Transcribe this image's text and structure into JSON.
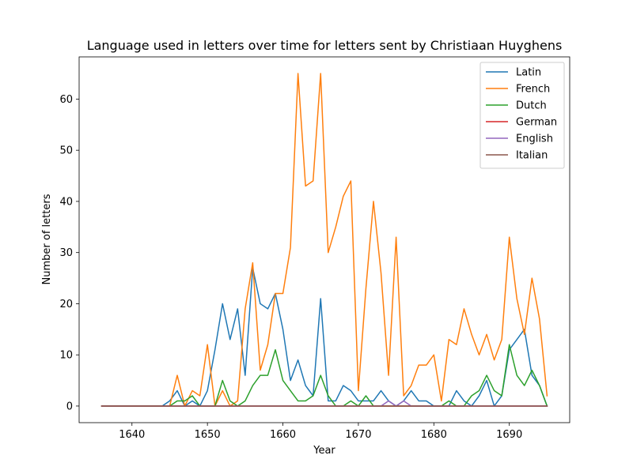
{
  "chart_data": {
    "type": "line",
    "title": "Language used in letters over time for letters sent by Christiaan Huyghens",
    "xlabel": "Year",
    "ylabel": "Number of letters",
    "xlim": [
      1633,
      1698
    ],
    "ylim": [
      -3.25,
      68.25
    ],
    "xticks": [
      1640,
      1650,
      1660,
      1670,
      1680,
      1690
    ],
    "yticks": [
      0,
      10,
      20,
      30,
      40,
      50,
      60
    ],
    "grid": false,
    "legend_position": "top-right",
    "x": [
      1636,
      1637,
      1638,
      1639,
      1640,
      1641,
      1642,
      1643,
      1644,
      1645,
      1646,
      1647,
      1648,
      1649,
      1650,
      1651,
      1652,
      1653,
      1654,
      1655,
      1656,
      1657,
      1658,
      1659,
      1660,
      1661,
      1662,
      1663,
      1664,
      1665,
      1666,
      1667,
      1668,
      1669,
      1670,
      1671,
      1672,
      1673,
      1674,
      1675,
      1676,
      1677,
      1678,
      1679,
      1680,
      1681,
      1682,
      1683,
      1684,
      1685,
      1686,
      1687,
      1688,
      1689,
      1690,
      1691,
      1692,
      1693,
      1694,
      1695
    ],
    "series": [
      {
        "name": "Latin",
        "color": "#1f77b4",
        "values": [
          0,
          0,
          0,
          0,
          0,
          0,
          0,
          0,
          0,
          1,
          3,
          0,
          1,
          0,
          3,
          11,
          20,
          13,
          19,
          6,
          27,
          20,
          19,
          22,
          15,
          5,
          9,
          4,
          2,
          21,
          1,
          1,
          4,
          3,
          1,
          1,
          1,
          3,
          1,
          0,
          1,
          3,
          1,
          1,
          0,
          0,
          0,
          3,
          1,
          0,
          2,
          5,
          0,
          2,
          11,
          13,
          15,
          6,
          4,
          0
        ]
      },
      {
        "name": "French",
        "color": "#ff7f0e",
        "values": [
          0,
          0,
          0,
          0,
          0,
          0,
          0,
          0,
          0,
          0,
          6,
          0,
          3,
          2,
          12,
          0,
          3,
          0,
          1,
          19,
          28,
          7,
          12,
          22,
          22,
          31,
          65,
          43,
          44,
          65,
          30,
          35,
          41,
          44,
          3,
          23,
          40,
          26,
          6,
          33,
          2,
          4,
          8,
          8,
          10,
          1,
          13,
          12,
          19,
          14,
          10,
          14,
          9,
          13,
          33,
          21,
          14,
          25,
          17,
          2
        ]
      },
      {
        "name": "Dutch",
        "color": "#2ca02c",
        "values": [
          0,
          0,
          0,
          0,
          0,
          0,
          0,
          0,
          0,
          0,
          1,
          1,
          2,
          0,
          0,
          0,
          5,
          1,
          0,
          1,
          4,
          6,
          6,
          11,
          5,
          3,
          1,
          1,
          2,
          6,
          2,
          0,
          0,
          1,
          0,
          2,
          0,
          0,
          0,
          0,
          0,
          0,
          0,
          0,
          0,
          0,
          1,
          0,
          0,
          2,
          3,
          6,
          3,
          2,
          12,
          6,
          4,
          7,
          4,
          0
        ]
      },
      {
        "name": "German",
        "color": "#d62728",
        "values": [
          0,
          0,
          0,
          0,
          0,
          0,
          0,
          0,
          0,
          0,
          0,
          0,
          0,
          0,
          0,
          0,
          0,
          0,
          0,
          0,
          0,
          0,
          0,
          0,
          0,
          0,
          0,
          0,
          0,
          0,
          0,
          0,
          0,
          0,
          0,
          0,
          0,
          0,
          0,
          0,
          0,
          0,
          0,
          0,
          0,
          0,
          0,
          0,
          0,
          0,
          0,
          0,
          0,
          0,
          0,
          0,
          0,
          0,
          0,
          0
        ]
      },
      {
        "name": "English",
        "color": "#9467bd",
        "values": [
          0,
          0,
          0,
          0,
          0,
          0,
          0,
          0,
          0,
          0,
          0,
          0,
          0,
          0,
          0,
          0,
          0,
          0,
          0,
          0,
          0,
          0,
          0,
          0,
          0,
          0,
          0,
          0,
          0,
          0,
          0,
          0,
          0,
          0,
          0,
          0,
          0,
          0,
          1,
          0,
          1,
          0,
          0,
          0,
          0,
          0,
          0,
          0,
          0,
          0,
          0,
          0,
          0,
          0,
          0,
          0,
          0,
          0,
          0,
          0
        ]
      },
      {
        "name": "Italian",
        "color": "#8c564b",
        "values": [
          0,
          0,
          0,
          0,
          0,
          0,
          0,
          0,
          0,
          0,
          0,
          0,
          0,
          0,
          0,
          0,
          0,
          0,
          0,
          0,
          0,
          0,
          0,
          0,
          0,
          0,
          0,
          0,
          0,
          0,
          0,
          0,
          0,
          0,
          0,
          0,
          0,
          0,
          0,
          0,
          0,
          0,
          0,
          0,
          0,
          0,
          0,
          0,
          0,
          0,
          0,
          0,
          0,
          0,
          0,
          0,
          0,
          0,
          0,
          0
        ]
      }
    ]
  }
}
